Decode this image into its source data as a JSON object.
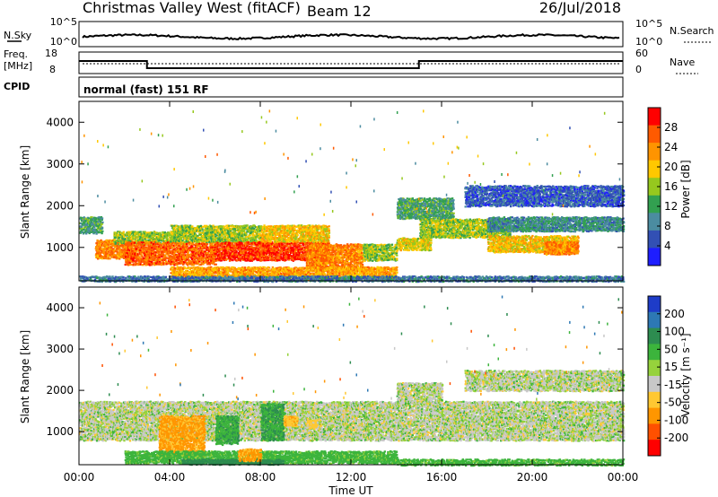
{
  "header": {
    "title": "Christmas Valley West (fitACF)",
    "beam": "Beam 12",
    "date": "26/Jul/2018"
  },
  "strip_noise": {
    "left_label": "N.Sky",
    "left_ticks": [
      "10^5",
      "10^0"
    ],
    "right_ticks": [
      "10^5",
      "10^0"
    ],
    "right_label": "N.Search"
  },
  "strip_freq": {
    "left_label_line1": "Freq.",
    "left_label_line2": "[MHz]",
    "left_ticks": [
      "18",
      "8"
    ],
    "right_ticks": [
      "60",
      "0"
    ],
    "right_label": "Nave",
    "freq_steps_hours": [
      0,
      3,
      15,
      24
    ],
    "freq_values_mhz": [
      14,
      10,
      14
    ]
  },
  "strip_cpid": {
    "left_label": "CPID",
    "text": "normal (fast) 151 RF"
  },
  "x_axis": {
    "tick_labels": [
      "00:00",
      "04:00",
      "08:00",
      "12:00",
      "16:00",
      "20:00",
      "00:00"
    ],
    "label": "Time UT"
  },
  "chart_data": [
    {
      "type": "heatmap",
      "title": "",
      "xlabel": "Time UT",
      "ylabel": "Slant Range [km]",
      "xlim": [
        0,
        24
      ],
      "ylim": [
        200,
        4500
      ],
      "y_ticks": [
        "1000",
        "2000",
        "3000",
        "4000"
      ],
      "colorbar": {
        "label": "Power [dB]",
        "tick_labels": [
          "28",
          "24",
          "20",
          "16",
          "12",
          "8",
          "4"
        ],
        "colors": [
          "#ff0000",
          "#ff5a00",
          "#ff9400",
          "#ffc800",
          "#96c81e",
          "#32a050",
          "#4b8ca0",
          "#3250b4",
          "#1e1eff"
        ]
      },
      "regions": [
        {
          "t0": 0.0,
          "t1": 1.0,
          "r0": 1350,
          "r1": 1750,
          "level": 12
        },
        {
          "t0": 0.7,
          "t1": 2.3,
          "r0": 750,
          "r1": 1200,
          "level": 24
        },
        {
          "t0": 1.5,
          "t1": 4.5,
          "r0": 1100,
          "r1": 1400,
          "level": 16
        },
        {
          "t0": 2.0,
          "t1": 6.0,
          "r0": 600,
          "r1": 1150,
          "level": 26
        },
        {
          "t0": 4.0,
          "t1": 8.0,
          "r0": 1150,
          "r1": 1550,
          "level": 16
        },
        {
          "t0": 6.0,
          "t1": 11.0,
          "r0": 700,
          "r1": 1150,
          "level": 28
        },
        {
          "t0": 8.0,
          "t1": 11.0,
          "r0": 1150,
          "r1": 1550,
          "level": 20
        },
        {
          "t0": 10.0,
          "t1": 12.5,
          "r0": 500,
          "r1": 1100,
          "level": 24
        },
        {
          "t0": 4.0,
          "t1": 14.0,
          "r0": 250,
          "r1": 550,
          "level": 22
        },
        {
          "t0": 12.5,
          "t1": 14.0,
          "r0": 700,
          "r1": 1100,
          "level": 16
        },
        {
          "t0": 14.0,
          "t1": 16.5,
          "r0": 1700,
          "r1": 2200,
          "level": 12
        },
        {
          "t0": 14.0,
          "t1": 15.5,
          "r0": 950,
          "r1": 1250,
          "level": 18
        },
        {
          "t0": 15.0,
          "t1": 19.0,
          "r0": 1250,
          "r1": 1700,
          "level": 16
        },
        {
          "t0": 18.0,
          "t1": 22.0,
          "r0": 900,
          "r1": 1300,
          "level": 20
        },
        {
          "t0": 18.0,
          "t1": 24.0,
          "r0": 1400,
          "r1": 1750,
          "level": 10
        },
        {
          "t0": 20.5,
          "t1": 22.0,
          "r0": 850,
          "r1": 1150,
          "level": 24
        },
        {
          "t0": 17.0,
          "t1": 24.0,
          "r0": 2000,
          "r1": 2500,
          "level": 6
        },
        {
          "t0": 0.0,
          "t1": 24.0,
          "r0": 200,
          "r1": 330,
          "level": 8
        }
      ]
    },
    {
      "type": "heatmap",
      "title": "",
      "xlabel": "Time UT",
      "ylabel": "Slant Range [km]",
      "xlim": [
        0,
        24
      ],
      "ylim": [
        200,
        4500
      ],
      "y_ticks": [
        "1000",
        "2000",
        "3000",
        "4000"
      ],
      "colorbar": {
        "label": "Velocity [m s⁻¹]",
        "tick_labels": [
          "200",
          "100",
          "50",
          "15",
          "-15",
          "-50",
          "-100",
          "-200"
        ],
        "colors": [
          "#1e3cc8",
          "#2d78b4",
          "#2d8c50",
          "#3cb43c",
          "#96d23c",
          "#c8c8c8",
          "#ffc832",
          "#ff9600",
          "#ff5000",
          "#ff0000"
        ]
      },
      "regions": [
        {
          "t0": 0.0,
          "t1": 24.0,
          "r0": 800,
          "r1": 1750,
          "vel": 0
        },
        {
          "t0": 3.5,
          "t1": 5.5,
          "r0": 400,
          "r1": 1400,
          "vel": -60
        },
        {
          "t0": 6.0,
          "t1": 7.0,
          "r0": 700,
          "r1": 1400,
          "vel": 40
        },
        {
          "t0": 8.0,
          "t1": 9.0,
          "r0": 800,
          "r1": 1700,
          "vel": 45
        },
        {
          "t0": 9.0,
          "t1": 9.6,
          "r0": 1150,
          "r1": 1400,
          "vel": -40
        },
        {
          "t0": 10.0,
          "t1": 10.5,
          "r0": 1100,
          "r1": 1300,
          "vel": -30
        },
        {
          "t0": 2.0,
          "t1": 14.0,
          "r0": 250,
          "r1": 550,
          "vel": 30
        },
        {
          "t0": 4.5,
          "t1": 9.0,
          "r0": 220,
          "r1": 350,
          "vel": 80
        },
        {
          "t0": 7.0,
          "t1": 8.0,
          "r0": 300,
          "r1": 600,
          "vel": -60
        },
        {
          "t0": 14.0,
          "t1": 24.0,
          "r0": 200,
          "r1": 350,
          "vel": 30
        },
        {
          "t0": 14.0,
          "t1": 16.0,
          "r0": 1700,
          "r1": 2200,
          "vel": 0
        },
        {
          "t0": 17.0,
          "t1": 24.0,
          "r0": 2000,
          "r1": 2500,
          "vel": 0
        }
      ]
    }
  ]
}
